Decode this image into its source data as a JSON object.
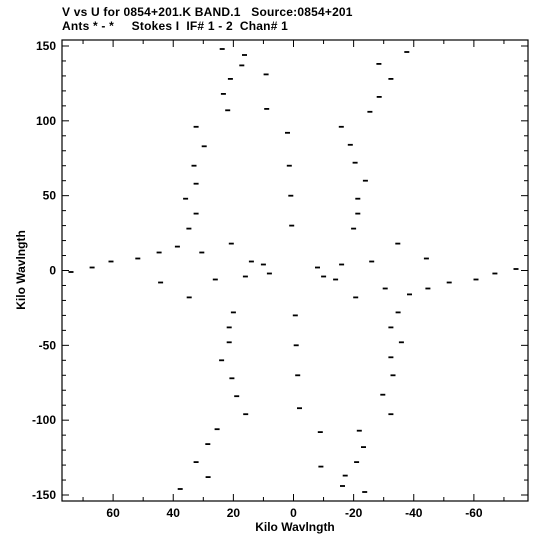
{
  "header": {
    "title_line1": "V vs U for 0854+201.K BAND.1   Source:0854+201",
    "title_line2": "Ants * - *     Stokes I  IF# 1 - 2  Chan# 1"
  },
  "chart_data": {
    "type": "scatter",
    "title": "V vs U for 0854+201.K BAND.1   Source:0854+201",
    "subtitle": "Ants * - *     Stokes I  IF# 1 - 2  Chan# 1",
    "xlabel": "Kilo Wavlngth",
    "ylabel": "Kilo Wavlngth",
    "xlim": [
      77,
      -78
    ],
    "ylim": [
      -154,
      154
    ],
    "x_reversed": true,
    "xticks": [
      60,
      40,
      20,
      0,
      -20,
      -40,
      -60
    ],
    "yticks": [
      -150,
      -100,
      -50,
      0,
      50,
      100,
      150
    ],
    "grid": false,
    "legend": "none",
    "marker_color": "#000000",
    "series": [
      {
        "values": [
          [
            23.7,
            148
          ],
          [
            -23.7,
            -148
          ],
          [
            16.3,
            144
          ],
          [
            -16.3,
            -144
          ],
          [
            17.2,
            137
          ],
          [
            -17.2,
            -137
          ],
          [
            21,
            128
          ],
          [
            -21,
            -128
          ],
          [
            23.3,
            118
          ],
          [
            -23.3,
            -118
          ],
          [
            21.9,
            107
          ],
          [
            -21.9,
            -107
          ],
          [
            32.4,
            96
          ],
          [
            -32.4,
            -96
          ],
          [
            29.7,
            83
          ],
          [
            -29.7,
            -83
          ],
          [
            33.1,
            70
          ],
          [
            -33.1,
            -70
          ],
          [
            32.4,
            58
          ],
          [
            -32.4,
            -58
          ],
          [
            35.9,
            48
          ],
          [
            -35.9,
            -48
          ],
          [
            32.4,
            38
          ],
          [
            -32.4,
            -38
          ],
          [
            34.8,
            28
          ],
          [
            -34.8,
            -28
          ],
          [
            20.7,
            18
          ],
          [
            -20.7,
            -18
          ],
          [
            30.5,
            12
          ],
          [
            -30.5,
            -12
          ],
          [
            38.6,
            16
          ],
          [
            -38.6,
            -16
          ],
          [
            44.7,
            12
          ],
          [
            -44.7,
            -12
          ],
          [
            51.8,
            8
          ],
          [
            -51.8,
            -8
          ],
          [
            60.7,
            6
          ],
          [
            -60.7,
            -6
          ],
          [
            67,
            2
          ],
          [
            -67,
            -2
          ],
          [
            74,
            -1
          ],
          [
            -74,
            1
          ],
          [
            44.2,
            -8
          ],
          [
            -44.2,
            8
          ],
          [
            34.7,
            -18
          ],
          [
            -34.7,
            18
          ],
          [
            20,
            -28
          ],
          [
            -20,
            28
          ],
          [
            21.4,
            -38
          ],
          [
            -21.4,
            38
          ],
          [
            21.4,
            -48
          ],
          [
            -21.4,
            48
          ],
          [
            23.9,
            -60
          ],
          [
            -23.9,
            60
          ],
          [
            20.5,
            -72
          ],
          [
            -20.5,
            72
          ],
          [
            18.9,
            -84
          ],
          [
            -18.9,
            84
          ],
          [
            15.9,
            -96
          ],
          [
            -15.9,
            96
          ],
          [
            25.4,
            -106
          ],
          [
            -25.4,
            106
          ],
          [
            28.5,
            -116
          ],
          [
            -28.5,
            116
          ],
          [
            32.4,
            -128
          ],
          [
            -32.4,
            128
          ],
          [
            28.4,
            -138
          ],
          [
            -28.4,
            138
          ],
          [
            37.7,
            -146
          ],
          [
            -37.7,
            146
          ],
          [
            9.1,
            131
          ],
          [
            -9.1,
            -131
          ],
          [
            -8.9,
            -108
          ],
          [
            8.9,
            108
          ],
          [
            2,
            92
          ],
          [
            -2,
            -92
          ],
          [
            1.4,
            70
          ],
          [
            -1.4,
            -70
          ],
          [
            0.9,
            50
          ],
          [
            -0.9,
            -50
          ],
          [
            0.6,
            30
          ],
          [
            -0.6,
            -30
          ],
          [
            10,
            4
          ],
          [
            -10,
            -4
          ],
          [
            14,
            6
          ],
          [
            -14,
            -6
          ],
          [
            8,
            -2
          ],
          [
            -8,
            2
          ],
          [
            16,
            -4
          ],
          [
            -16,
            4
          ],
          [
            26,
            -6
          ],
          [
            -26,
            6
          ]
        ]
      }
    ]
  }
}
